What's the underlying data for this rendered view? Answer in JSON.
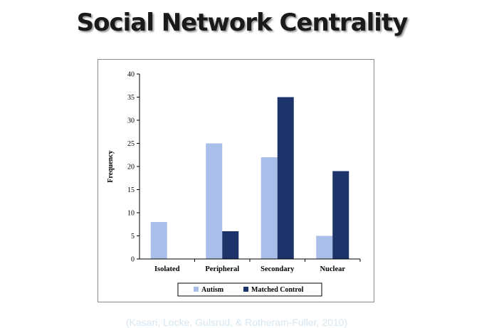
{
  "slide": {
    "title": "Social Network Centrality",
    "citation": "(Kasari, Locke, Gulsrud, & Rotheram-Fuller, 2010)"
  },
  "chart_data": {
    "type": "bar",
    "categories": [
      "Isolated",
      "Peripheral",
      "Secondary",
      "Nuclear"
    ],
    "series": [
      {
        "name": "Autism",
        "values": [
          8,
          25,
          22,
          5
        ],
        "color": "#a9bfe9"
      },
      {
        "name": "Matched Control",
        "values": [
          0,
          6,
          35,
          19
        ],
        "color": "#1c3469"
      }
    ],
    "ylabel": "Frequency",
    "ylim": [
      0,
      40
    ],
    "yticks": [
      0,
      5,
      10,
      15,
      20,
      25,
      30,
      35,
      40
    ],
    "grid": false,
    "legend_position": "bottom"
  }
}
